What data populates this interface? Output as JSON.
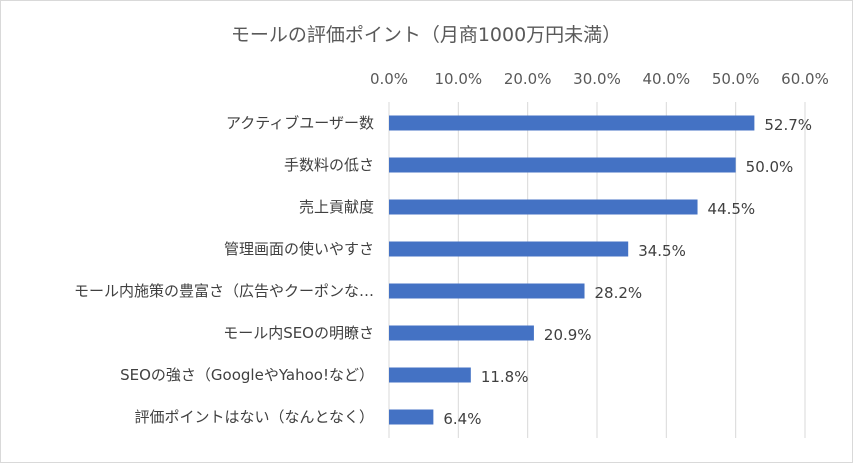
{
  "chart_data": {
    "type": "bar",
    "orientation": "horizontal",
    "title": "モールの評価ポイント（月商1000万円未満）",
    "xlim": [
      0,
      60
    ],
    "tick_values": [
      0,
      10,
      20,
      30,
      40,
      50,
      60
    ],
    "tick_labels": [
      "0.0%",
      "10.0%",
      "20.0%",
      "30.0%",
      "40.0%",
      "50.0%",
      "60.0%"
    ],
    "x_axis_position": "top",
    "grid": true,
    "bar_color": "#4472C4",
    "categories": [
      "アクティブユーザー数",
      "手数料の低さ",
      "売上貢献度",
      "管理画面の使いやすさ",
      "モール内施策の豊富さ（広告やクーポンな…",
      "モール内SEOの明瞭さ",
      "SEOの強さ（GoogleやYahoo!など）",
      "評価ポイントはない（なんとなく）"
    ],
    "values": [
      52.7,
      50.0,
      44.5,
      34.5,
      28.2,
      20.9,
      11.8,
      6.4
    ],
    "data_labels": [
      "52.7%",
      "50.0%",
      "44.5%",
      "34.5%",
      "28.2%",
      "20.9%",
      "11.8%",
      "6.4%"
    ]
  }
}
